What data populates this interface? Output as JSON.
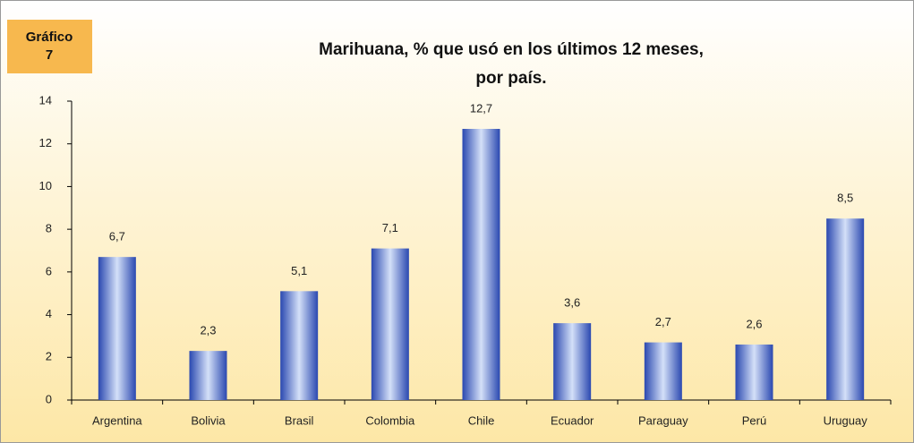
{
  "chart_data": {
    "type": "bar",
    "badge": [
      "Gráfico",
      "7"
    ],
    "title": [
      "Marihuana, % que usó en los últimos 12 meses,",
      "por país."
    ],
    "categories": [
      "Argentina",
      "Bolivia",
      "Brasil",
      "Colombia",
      "Chile",
      "Ecuador",
      "Paraguay",
      "Perú",
      "Uruguay"
    ],
    "values": [
      6.7,
      2.3,
      5.1,
      7.1,
      12.7,
      3.6,
      2.7,
      2.6,
      8.5
    ],
    "value_labels": [
      "6,7",
      "2,3",
      "5,1",
      "7,1",
      "12,7",
      "3,6",
      "2,7",
      "2,6",
      "8,5"
    ],
    "color": "#2a48b0",
    "ylim": [
      0,
      14
    ],
    "yticks": [
      0,
      2,
      4,
      6,
      8,
      10,
      12,
      14
    ],
    "grid": false
  }
}
